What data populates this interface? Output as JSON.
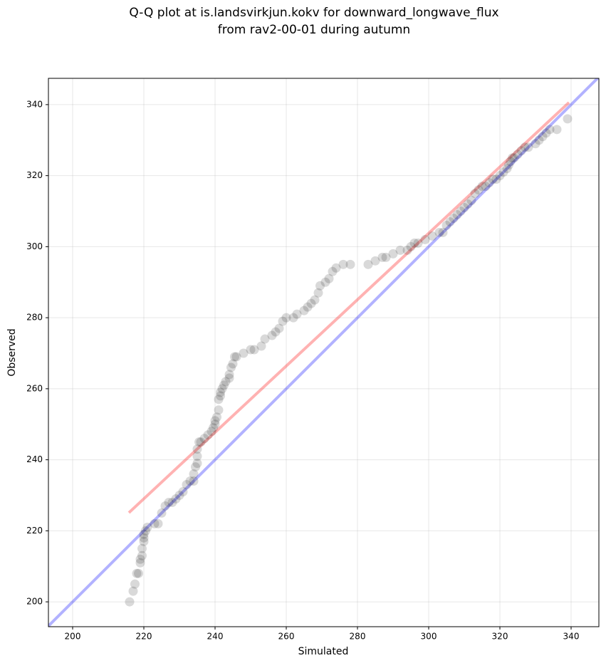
{
  "chart_data": {
    "type": "scatter",
    "title": [
      "Q-Q plot at is.landsvirkjun.kokv for downward_longwave_flux",
      "from rav2-00-01 during autumn"
    ],
    "x_label": "Simulated",
    "y_label": "Observed",
    "xlim": [
      193.2,
      347.8
    ],
    "ylim": [
      193.0,
      347.4
    ],
    "xticks": [
      200,
      220,
      240,
      260,
      280,
      300,
      320,
      340
    ],
    "yticks": [
      200,
      220,
      240,
      260,
      280,
      300,
      320,
      340
    ],
    "grid": true,
    "series": [
      {
        "color": "#000000",
        "x": [
          216,
          217,
          217.5,
          218,
          218.5,
          219,
          219,
          219.5,
          219.5,
          220,
          220,
          220,
          220.5,
          221,
          223,
          224,
          225,
          226,
          227,
          228,
          229,
          230,
          231,
          232,
          233,
          234,
          234,
          234.5,
          235,
          235,
          235,
          235.5,
          236,
          237,
          238,
          239,
          239.5,
          240,
          240,
          240.5,
          241,
          241,
          241.5,
          241.5,
          242,
          242.5,
          243,
          244,
          244,
          244.5,
          245,
          245.5,
          246,
          248,
          250,
          251,
          253,
          254,
          256,
          257,
          258,
          259,
          260,
          262,
          263,
          265,
          266,
          267,
          268,
          269,
          269.5,
          271,
          272,
          273,
          274,
          276,
          278,
          283,
          285,
          287,
          288,
          290,
          292,
          294,
          295,
          296,
          297,
          299,
          301,
          303,
          304,
          305,
          306,
          307,
          308,
          309,
          310,
          311,
          312,
          313,
          314,
          315,
          316,
          317,
          318,
          319,
          320,
          321,
          322,
          322.5,
          323,
          323.5,
          324,
          325,
          326,
          327,
          328,
          330,
          331,
          332,
          333,
          334,
          336,
          339
        ],
        "y": [
          200,
          203,
          205,
          208,
          208,
          211,
          212,
          213,
          215,
          217,
          218,
          219,
          220,
          221,
          222,
          222,
          225,
          227,
          228,
          228,
          229,
          230,
          231,
          233,
          234,
          234,
          236,
          238,
          239,
          241,
          243,
          245,
          245,
          246,
          247,
          248,
          249,
          250,
          251,
          252,
          254,
          257,
          258,
          259,
          260,
          261,
          262,
          263,
          264,
          266,
          267,
          269,
          269,
          270,
          271,
          271,
          272,
          274,
          275,
          276,
          277,
          279,
          280,
          280,
          281,
          282,
          283,
          284,
          285,
          287,
          289,
          290,
          291,
          293,
          294,
          295,
          295,
          295,
          296,
          297,
          297,
          298,
          299,
          299,
          300,
          301,
          301,
          302,
          303,
          304,
          304,
          306,
          307,
          308,
          309,
          310,
          311,
          312,
          313,
          315,
          316,
          317,
          317,
          318,
          319,
          319,
          320,
          321,
          322,
          323,
          324,
          325,
          325,
          326,
          327,
          328,
          328,
          329,
          330,
          331,
          332,
          333,
          333,
          336
        ]
      }
    ],
    "lines": [
      {
        "color": "#0000ff",
        "x": [
          193.2,
          347.8
        ],
        "y": [
          193.2,
          347.8
        ]
      },
      {
        "color": "#ff0000",
        "x": [
          215.8,
          339.4
        ],
        "y": [
          225.1,
          340.6
        ]
      }
    ]
  }
}
